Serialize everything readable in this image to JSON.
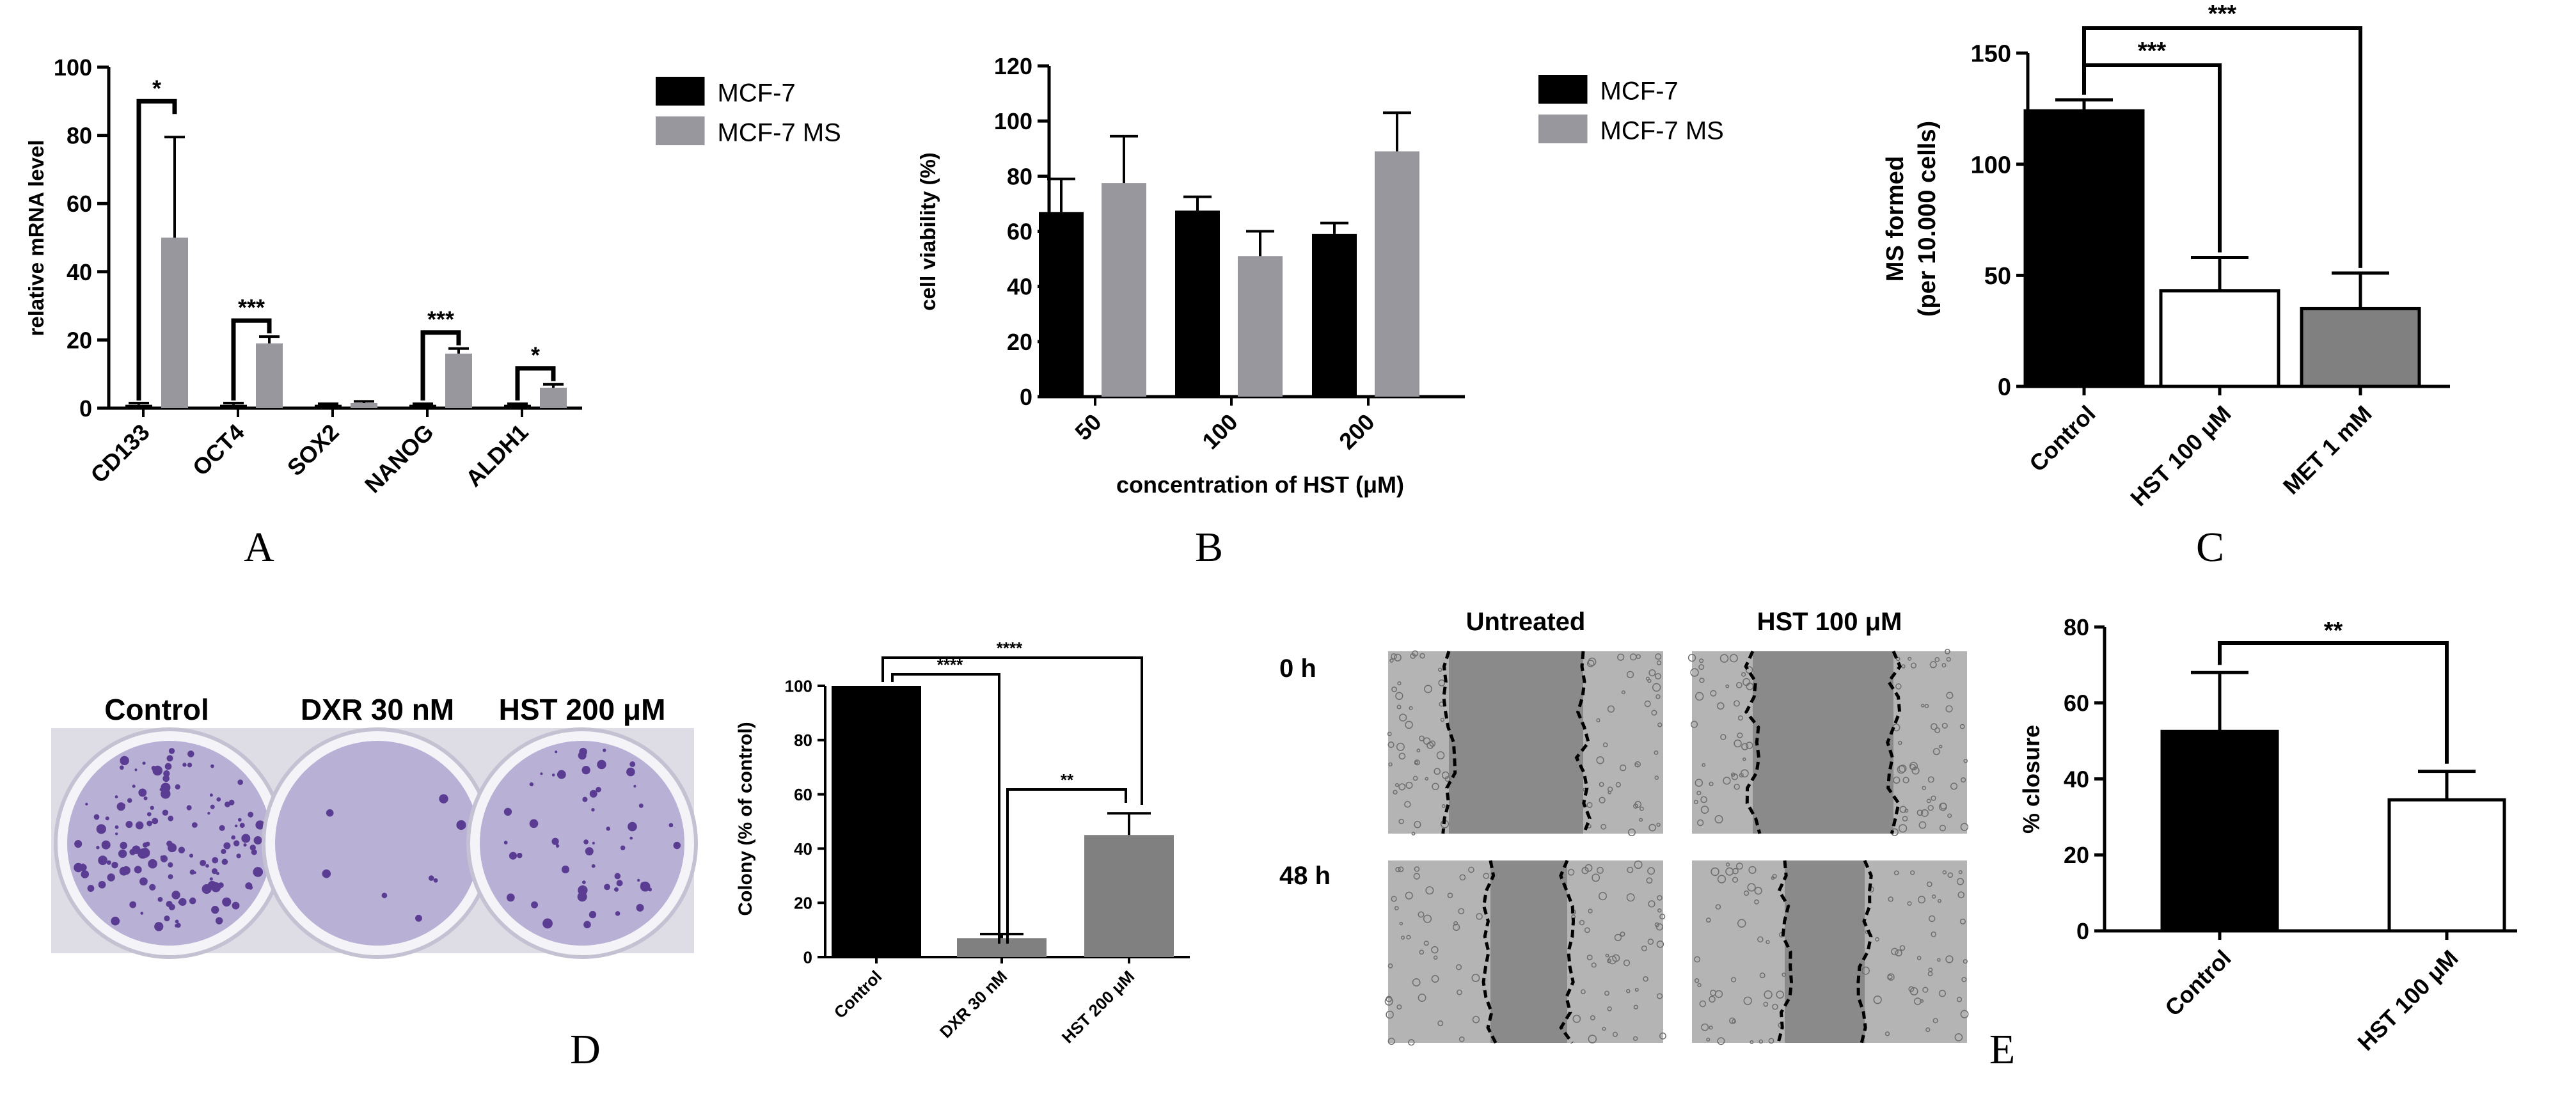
{
  "chart_data": [
    {
      "id": "A",
      "type": "bar",
      "panel_label": "A",
      "ylabel": "relative mRNA level",
      "ylim": [
        0,
        100
      ],
      "yticks": [
        0,
        20,
        40,
        60,
        80,
        100
      ],
      "categories": [
        "CD133",
        "OCT4",
        "SOX2",
        "NANOG",
        "ALDH1"
      ],
      "series": [
        {
          "name": "MCF-7",
          "color": "#000000",
          "values": [
            1,
            1,
            1,
            1,
            1
          ],
          "errors": [
            0.5,
            0.5,
            0.3,
            0.3,
            0.3
          ]
        },
        {
          "name": "MCF-7 MS",
          "color": "#97979d",
          "values": [
            50,
            19,
            1.5,
            16,
            6
          ],
          "errors": [
            29.5,
            2,
            0.5,
            1.5,
            1
          ]
        }
      ],
      "significance": [
        "*",
        "***",
        "",
        "***",
        "*"
      ],
      "legend": "right"
    },
    {
      "id": "B",
      "type": "bar",
      "panel_label": "B",
      "ylabel": "cell viability (%)",
      "xlabel": "concentration of HST (μM)",
      "ylim": [
        0,
        120
      ],
      "yticks": [
        0,
        20,
        40,
        60,
        80,
        100,
        120
      ],
      "categories": [
        "50",
        "100",
        "200"
      ],
      "series": [
        {
          "name": "MCF-7",
          "color": "#000000",
          "values": [
            67,
            67.5,
            59
          ],
          "errors": [
            12,
            5,
            4
          ]
        },
        {
          "name": "MCF-7 MS",
          "color": "#97979d",
          "values": [
            77.5,
            51,
            89
          ],
          "errors": [
            17,
            9,
            14
          ]
        }
      ],
      "legend": "right"
    },
    {
      "id": "C",
      "type": "bar",
      "panel_label": "C",
      "ylabel": "MS formed",
      "ylabel2": "(per 10.000 cells)",
      "ylim": [
        0,
        150
      ],
      "yticks": [
        0,
        50,
        100,
        150
      ],
      "categories": [
        "Control",
        "HST 100 μM",
        "MET 1 mM"
      ],
      "values": [
        124,
        43,
        35
      ],
      "errors": [
        5,
        15,
        16
      ],
      "fills": [
        "#000000",
        "#ffffff",
        "#808080"
      ],
      "brackets": [
        {
          "from": 0,
          "to": 1,
          "label": "***"
        },
        {
          "from": 0,
          "to": 2,
          "label": "***"
        }
      ]
    },
    {
      "id": "D",
      "type": "bar",
      "panel_label": "D",
      "ylabel": "Colony (% of control)",
      "ylim": [
        0,
        100
      ],
      "yticks": [
        0,
        20,
        40,
        60,
        80,
        100
      ],
      "categories": [
        "Control",
        "DXR 30 nM",
        "HST 200 μM"
      ],
      "values": [
        100,
        7,
        45
      ],
      "errors": [
        0,
        1.5,
        8
      ],
      "fills": [
        "#000000",
        "#808080",
        "#808080"
      ],
      "brackets": [
        {
          "from": 0,
          "to": 1,
          "label": "****"
        },
        {
          "from": 0,
          "to": 2,
          "label": "****"
        },
        {
          "from": 1,
          "to": 2,
          "label": "**"
        }
      ]
    },
    {
      "id": "E",
      "type": "bar",
      "panel_label": "E",
      "ylabel": "% closure",
      "ylim": [
        0,
        80
      ],
      "yticks": [
        0,
        20,
        40,
        60,
        80
      ],
      "categories": [
        "Control",
        "HST 100 μM"
      ],
      "values": [
        52.5,
        34.5
      ],
      "errors": [
        15.5,
        7.5
      ],
      "fills": [
        "#000000",
        "#ffffff"
      ],
      "brackets": [
        {
          "from": 0,
          "to": 1,
          "label": "**"
        }
      ]
    }
  ],
  "images": {
    "plates": {
      "labels": [
        "Control",
        "DXR 30 nM",
        "HST 200 μM"
      ],
      "colors": {
        "well": "#b9b0d6",
        "colony": "#5a3d93",
        "frame": "#dedde6"
      }
    },
    "wound": {
      "columns": [
        "Untreated",
        "HST 100 μM"
      ],
      "rows": [
        "0 h",
        "48 h"
      ],
      "colors": {
        "field": "#8a8a8a",
        "edge": "#b4b4b4"
      }
    }
  }
}
